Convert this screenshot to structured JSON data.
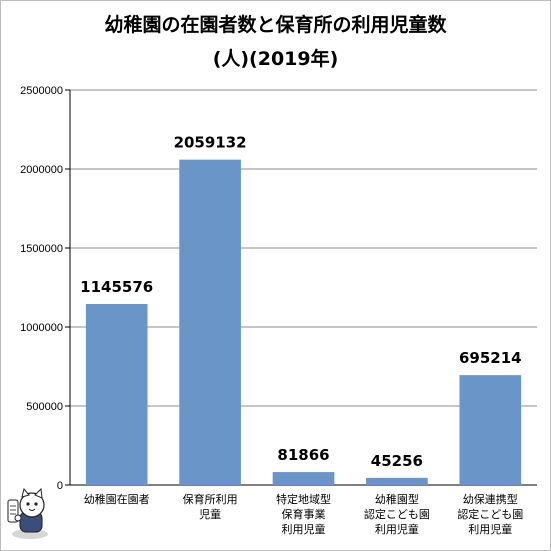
{
  "chart_data": {
    "type": "bar",
    "title": "幼稚園の在園者数と保育所の利用児童数",
    "subtitle": "(人)(2019年)",
    "categories": [
      [
        "幼稚園在園者"
      ],
      [
        "保育所利用",
        "児童"
      ],
      [
        "特定地域型",
        "保育事業",
        "利用児童"
      ],
      [
        "幼稚園型",
        "認定こども園",
        "利用児童"
      ],
      [
        "幼保連携型",
        "認定こども園",
        "利用児童"
      ]
    ],
    "values": [
      1145576,
      2059132,
      81866,
      45256,
      695214
    ],
    "data_labels": [
      "1145576",
      "2059132",
      "81866",
      "45256",
      "695214"
    ],
    "y_ticks": [
      "0",
      "500000",
      "1000000",
      "1500000",
      "2000000",
      "2500000"
    ],
    "ylim": [
      0,
      2500000
    ],
    "grid": true,
    "colors": {
      "bar": "#6a95c9",
      "grid": "#8c8c8c"
    }
  },
  "mascot": {
    "icon": "cat-mascot-icon"
  }
}
